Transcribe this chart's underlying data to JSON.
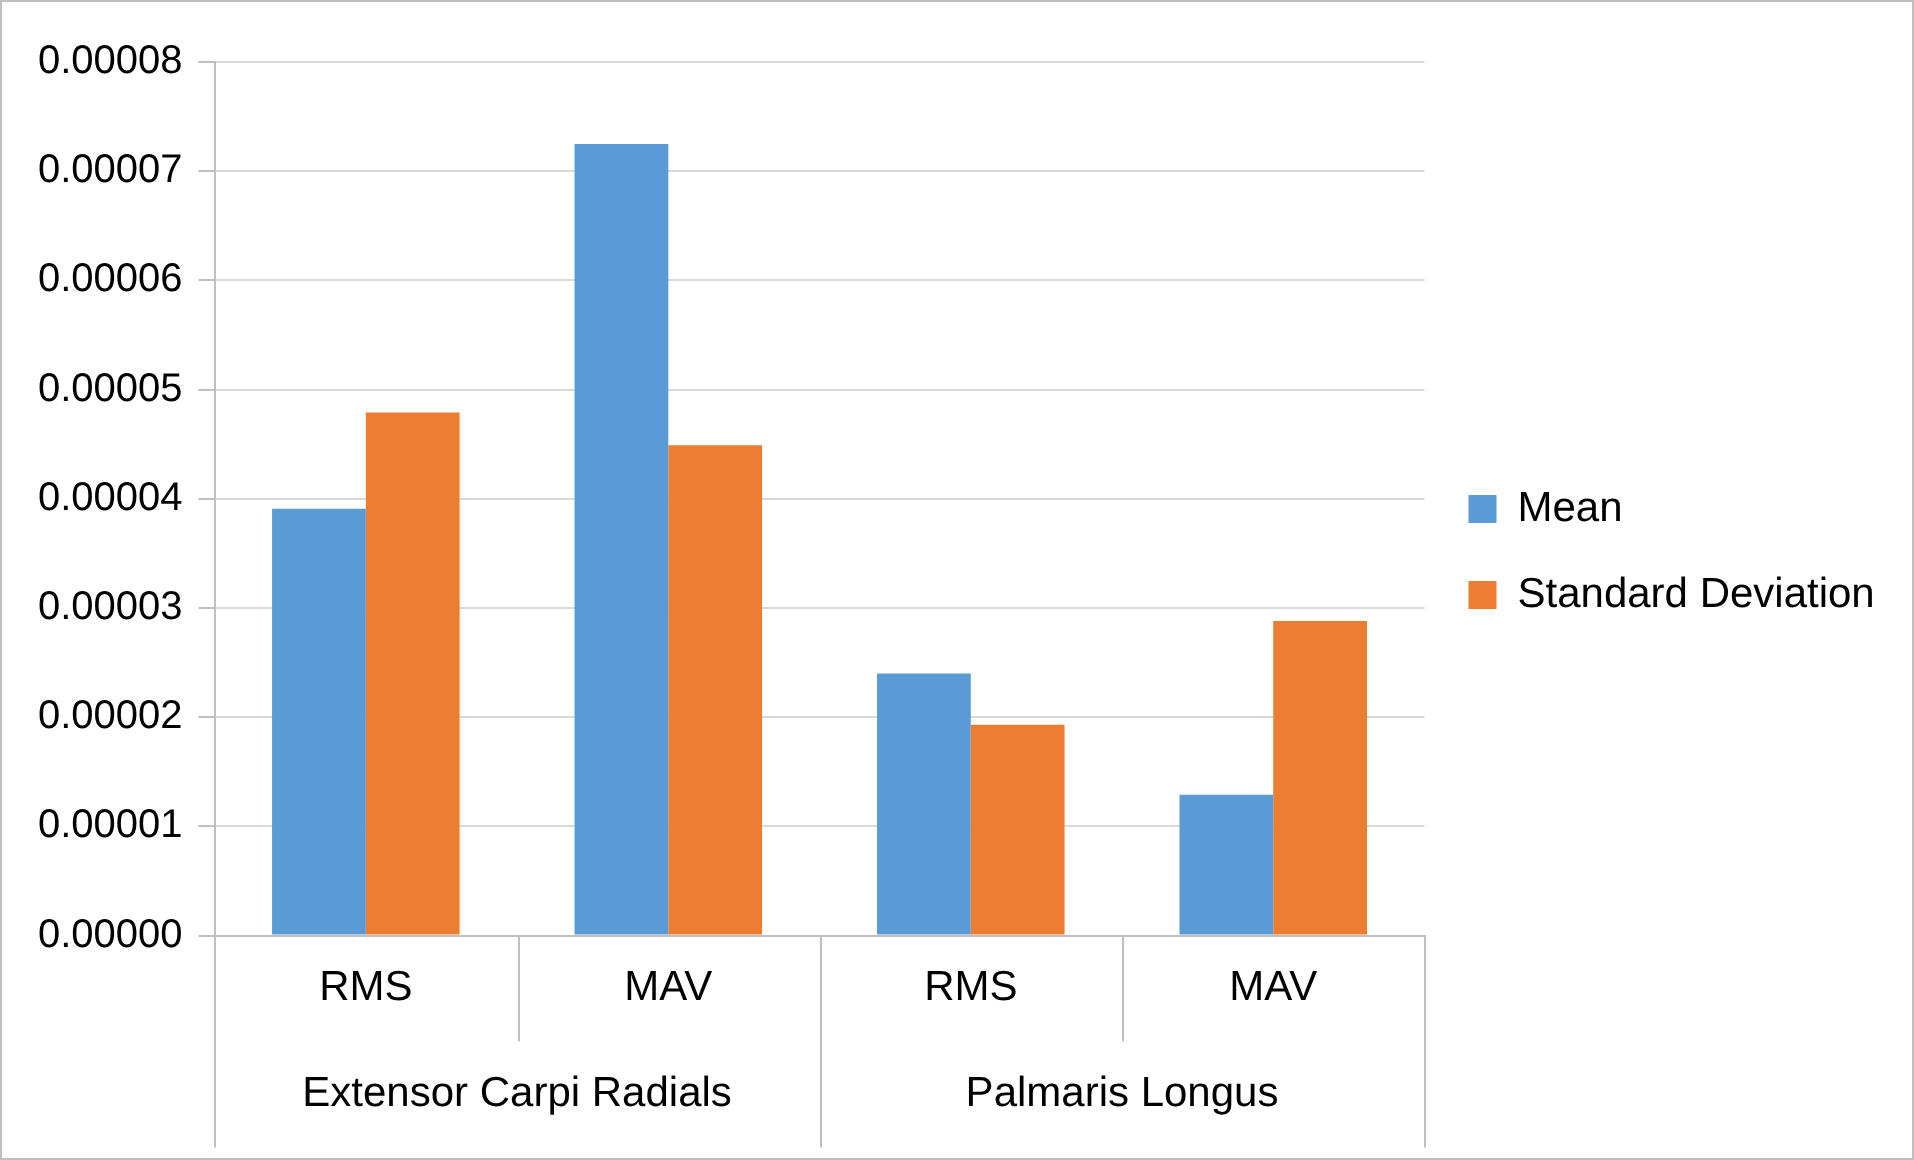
{
  "chart_data": {
    "type": "bar",
    "categories": [
      "RMS",
      "MAV",
      "RMS",
      "MAV"
    ],
    "series": [
      {
        "name": "Mean",
        "color": "#5b9bd5",
        "values": [
          3.91e-05,
          7.25e-05,
          2.4e-05,
          1.29e-05
        ]
      },
      {
        "name": "Standard Deviation",
        "color": "#ed7d31",
        "values": [
          4.79e-05,
          4.49e-05,
          1.93e-05,
          2.88e-05
        ]
      }
    ],
    "ylim": [
      0,
      8e-05
    ],
    "yticks": [
      {
        "value": 0,
        "label": "0.00000"
      },
      {
        "value": 1e-05,
        "label": "0.00001"
      },
      {
        "value": 2e-05,
        "label": "0.00002"
      },
      {
        "value": 3e-05,
        "label": "0.00003"
      },
      {
        "value": 4e-05,
        "label": "0.00004"
      },
      {
        "value": 5e-05,
        "label": "0.00005"
      },
      {
        "value": 6e-05,
        "label": "0.00006"
      },
      {
        "value": 7e-05,
        "label": "0.00007"
      },
      {
        "value": 8e-05,
        "label": "0.00008"
      }
    ],
    "grid": "y",
    "legend": "right",
    "annotations": [
      "Extensor Carpi Radials",
      "Palmaris Longus"
    ]
  }
}
